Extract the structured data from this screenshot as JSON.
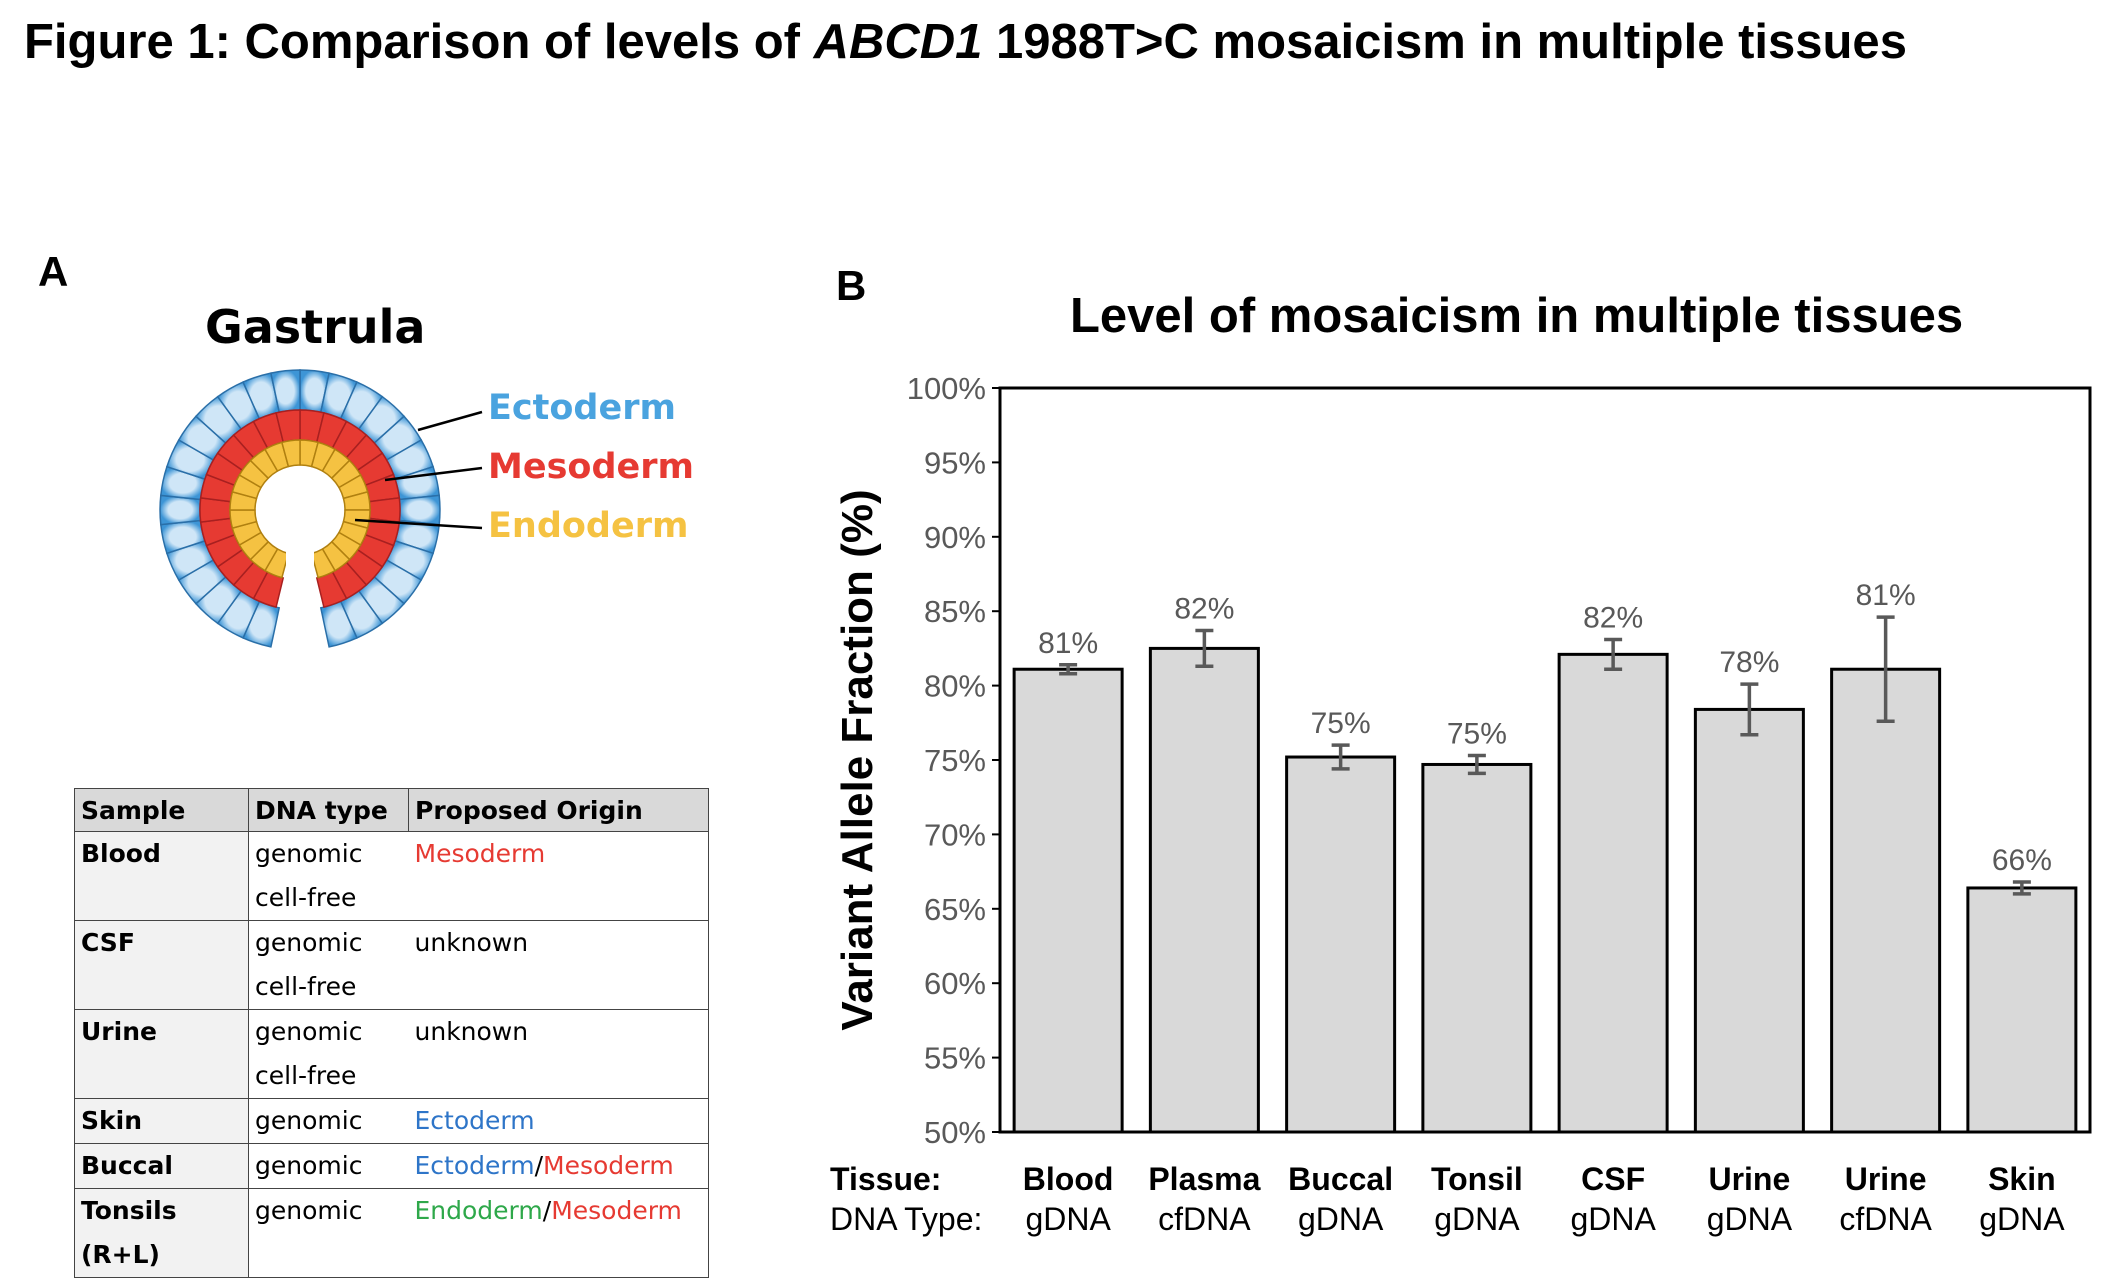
{
  "figure": {
    "title_prefix": "Figure 1: Comparison of levels of ",
    "title_gene": "ABCD1",
    "title_suffix": " 1988T>C mosaicism in multiple tissues"
  },
  "panel_a": {
    "label": "A",
    "gastrula_title": "Gastrula",
    "germ_layers": [
      {
        "name": "Ectoderm",
        "color": "#4aa3df"
      },
      {
        "name": "Mesoderm",
        "color": "#e63a32"
      },
      {
        "name": "Endoderm",
        "color": "#f5c242"
      }
    ],
    "table": {
      "headers": [
        "Sample",
        "DNA type",
        "Proposed Origin"
      ],
      "rows": [
        {
          "sample": "Blood",
          "dna": [
            "genomic",
            "cell-free"
          ],
          "origin": [
            {
              "text": "Mesoderm",
              "color": "#e63a32"
            }
          ]
        },
        {
          "sample": "CSF",
          "dna": [
            "genomic",
            "cell-free"
          ],
          "origin": [
            {
              "text": "unknown",
              "color": "#000000"
            }
          ]
        },
        {
          "sample": "Urine",
          "dna": [
            "genomic",
            "cell-free"
          ],
          "origin": [
            {
              "text": "unknown",
              "color": "#000000"
            }
          ]
        },
        {
          "sample": "Skin",
          "dna": [
            "genomic"
          ],
          "origin": [
            {
              "text": "Ectoderm",
              "color": "#2e75c8"
            }
          ]
        },
        {
          "sample": "Buccal",
          "dna": [
            "genomic"
          ],
          "origin": [
            {
              "text": "Ectoderm",
              "color": "#2e75c8"
            },
            {
              "text": "/",
              "color": "#000000"
            },
            {
              "text": "Mesoderm",
              "color": "#e63a32"
            }
          ]
        },
        {
          "sample": "Tonsils (R+L)",
          "dna": [
            "genomic"
          ],
          "origin": [
            {
              "text": "Endoderm",
              "color": "#2ea84a"
            },
            {
              "text": "/",
              "color": "#000000"
            },
            {
              "text": "Mesoderm",
              "color": "#e63a32"
            }
          ]
        }
      ]
    }
  },
  "panel_b": {
    "label": "B",
    "tissue_row_title": "Tissue:",
    "dna_row_title": "DNA Type:"
  },
  "chart_data": {
    "type": "bar",
    "title": "Level of mosaicism in multiple tissues",
    "ylabel": "Variant Allele Fraction (%)",
    "xlabel": "",
    "ylim": [
      50,
      100
    ],
    "yticks": [
      "50%",
      "55%",
      "60%",
      "65%",
      "70%",
      "75%",
      "80%",
      "85%",
      "90%",
      "95%",
      "100%"
    ],
    "categories": [
      "Blood",
      "Plasma",
      "Buccal",
      "Tonsil",
      "CSF",
      "Urine",
      "Urine",
      "Skin"
    ],
    "dna_types": [
      "gDNA",
      "cfDNA",
      "gDNA",
      "gDNA",
      "gDNA",
      "gDNA",
      "cfDNA",
      "gDNA"
    ],
    "values": [
      81.1,
      82.5,
      75.2,
      74.7,
      82.1,
      78.4,
      81.1,
      66.4
    ],
    "errors": [
      0.3,
      1.2,
      0.8,
      0.6,
      1.0,
      1.7,
      3.5,
      0.4
    ],
    "data_labels": [
      "81%",
      "82%",
      "75%",
      "75%",
      "82%",
      "78%",
      "81%",
      "66%"
    ],
    "bar_color": "#d9d9d9",
    "grid": false,
    "legend": "none"
  }
}
